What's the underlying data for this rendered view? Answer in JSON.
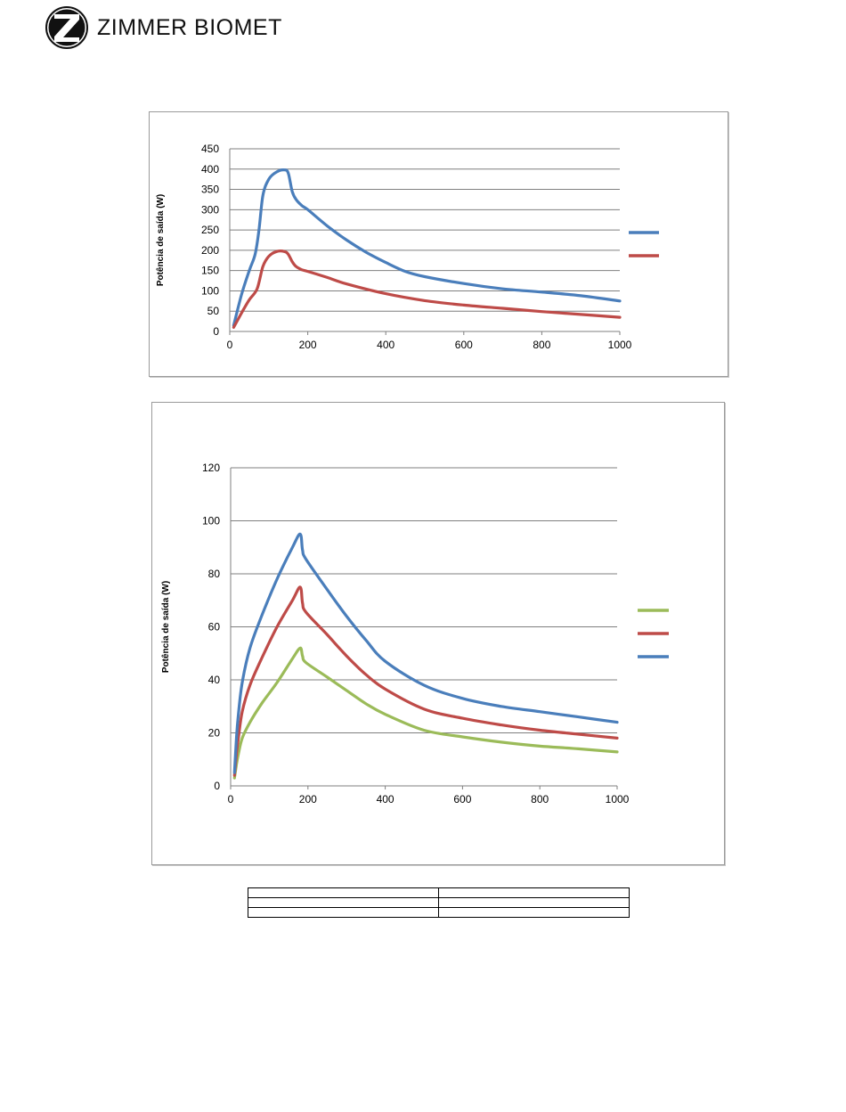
{
  "header": {
    "brand_name": "ZIMMER BIOMET",
    "logo_icon": "zimmer-biomet-z-logo-icon"
  },
  "chart_data": [
    {
      "type": "line",
      "title": "",
      "xlabel": "",
      "ylabel": "Potência de saída (W)",
      "xlim": [
        0,
        1000
      ],
      "ylim": [
        0,
        450
      ],
      "xticks": [
        0,
        200,
        400,
        600,
        800,
        1000
      ],
      "xtick_labels": [
        "0",
        "200",
        "400",
        "600",
        "800",
        "1000"
      ],
      "yticks": [
        0,
        50,
        100,
        150,
        200,
        250,
        300,
        350,
        400,
        450
      ],
      "ytick_labels": [
        "0",
        "50",
        "100",
        "150",
        "200",
        "250",
        "300",
        "350",
        "400",
        "450"
      ],
      "grid": true,
      "legend_position": "right",
      "series": [
        {
          "color": "#4a7ebb",
          "x": [
            10,
            30,
            50,
            65,
            75,
            85,
            100,
            120,
            140,
            150,
            160,
            170,
            185,
            200,
            250,
            300,
            350,
            400,
            450,
            500,
            600,
            700,
            800,
            900,
            1000
          ],
          "y": [
            15,
            90,
            150,
            190,
            250,
            335,
            375,
            393,
            398,
            390,
            345,
            325,
            310,
            300,
            260,
            225,
            195,
            170,
            148,
            135,
            118,
            105,
            97,
            88,
            75
          ]
        },
        {
          "color": "#be4b48",
          "x": [
            10,
            30,
            50,
            70,
            85,
            100,
            120,
            140,
            150,
            160,
            170,
            185,
            200,
            250,
            300,
            400,
            500,
            600,
            700,
            800,
            900,
            1000
          ],
          "y": [
            10,
            45,
            78,
            105,
            160,
            185,
            197,
            197,
            190,
            172,
            160,
            152,
            148,
            133,
            117,
            93,
            76,
            65,
            57,
            49,
            42,
            35
          ]
        }
      ]
    },
    {
      "type": "line",
      "title": "",
      "xlabel": "",
      "ylabel": "Potência de saída (W)",
      "xlim": [
        0,
        1000
      ],
      "ylim": [
        0,
        120
      ],
      "xticks": [
        0,
        200,
        400,
        600,
        800,
        1000
      ],
      "xtick_labels": [
        "0",
        "200",
        "400",
        "600",
        "800",
        "1000"
      ],
      "yticks": [
        0,
        20,
        40,
        60,
        80,
        100,
        120
      ],
      "ytick_labels": [
        "0",
        "20",
        "40",
        "60",
        "80",
        "100",
        "120"
      ],
      "grid": true,
      "legend_position": "right",
      "series": [
        {
          "color": "#9bbb59",
          "x": [
            10,
            15,
            20,
            30,
            50,
            80,
            120,
            160,
            180,
            186,
            195,
            250,
            300,
            350,
            400,
            500,
            600,
            700,
            800,
            900,
            1000
          ],
          "y": [
            3,
            8,
            12,
            18,
            24,
            31,
            39,
            48,
            52,
            49,
            46.5,
            41,
            36,
            31,
            27,
            21,
            18.5,
            16.5,
            15,
            14,
            12.8
          ]
        },
        {
          "color": "#be4b48",
          "x": [
            10,
            15,
            20,
            30,
            50,
            80,
            120,
            160,
            180,
            186,
            195,
            250,
            300,
            350,
            400,
            500,
            600,
            700,
            800,
            900,
            1000
          ],
          "y": [
            4,
            12,
            18,
            28,
            38,
            48,
            60,
            70,
            75,
            69,
            65.5,
            57,
            49,
            42,
            36.5,
            29,
            25.5,
            23,
            21,
            19.5,
            18
          ]
        },
        {
          "color": "#4a7ebb",
          "x": [
            10,
            15,
            20,
            30,
            50,
            80,
            120,
            160,
            180,
            186,
            195,
            250,
            300,
            350,
            400,
            500,
            600,
            700,
            800,
            900,
            1000
          ],
          "y": [
            5,
            18,
            27,
            39,
            52,
            64,
            78,
            90,
            95,
            89,
            85.5,
            74,
            64,
            55,
            47,
            38,
            33,
            30,
            28,
            26,
            24
          ]
        }
      ]
    }
  ],
  "table": {
    "rows": [
      [
        "",
        ""
      ],
      [
        "",
        ""
      ],
      [
        "",
        ""
      ]
    ]
  }
}
